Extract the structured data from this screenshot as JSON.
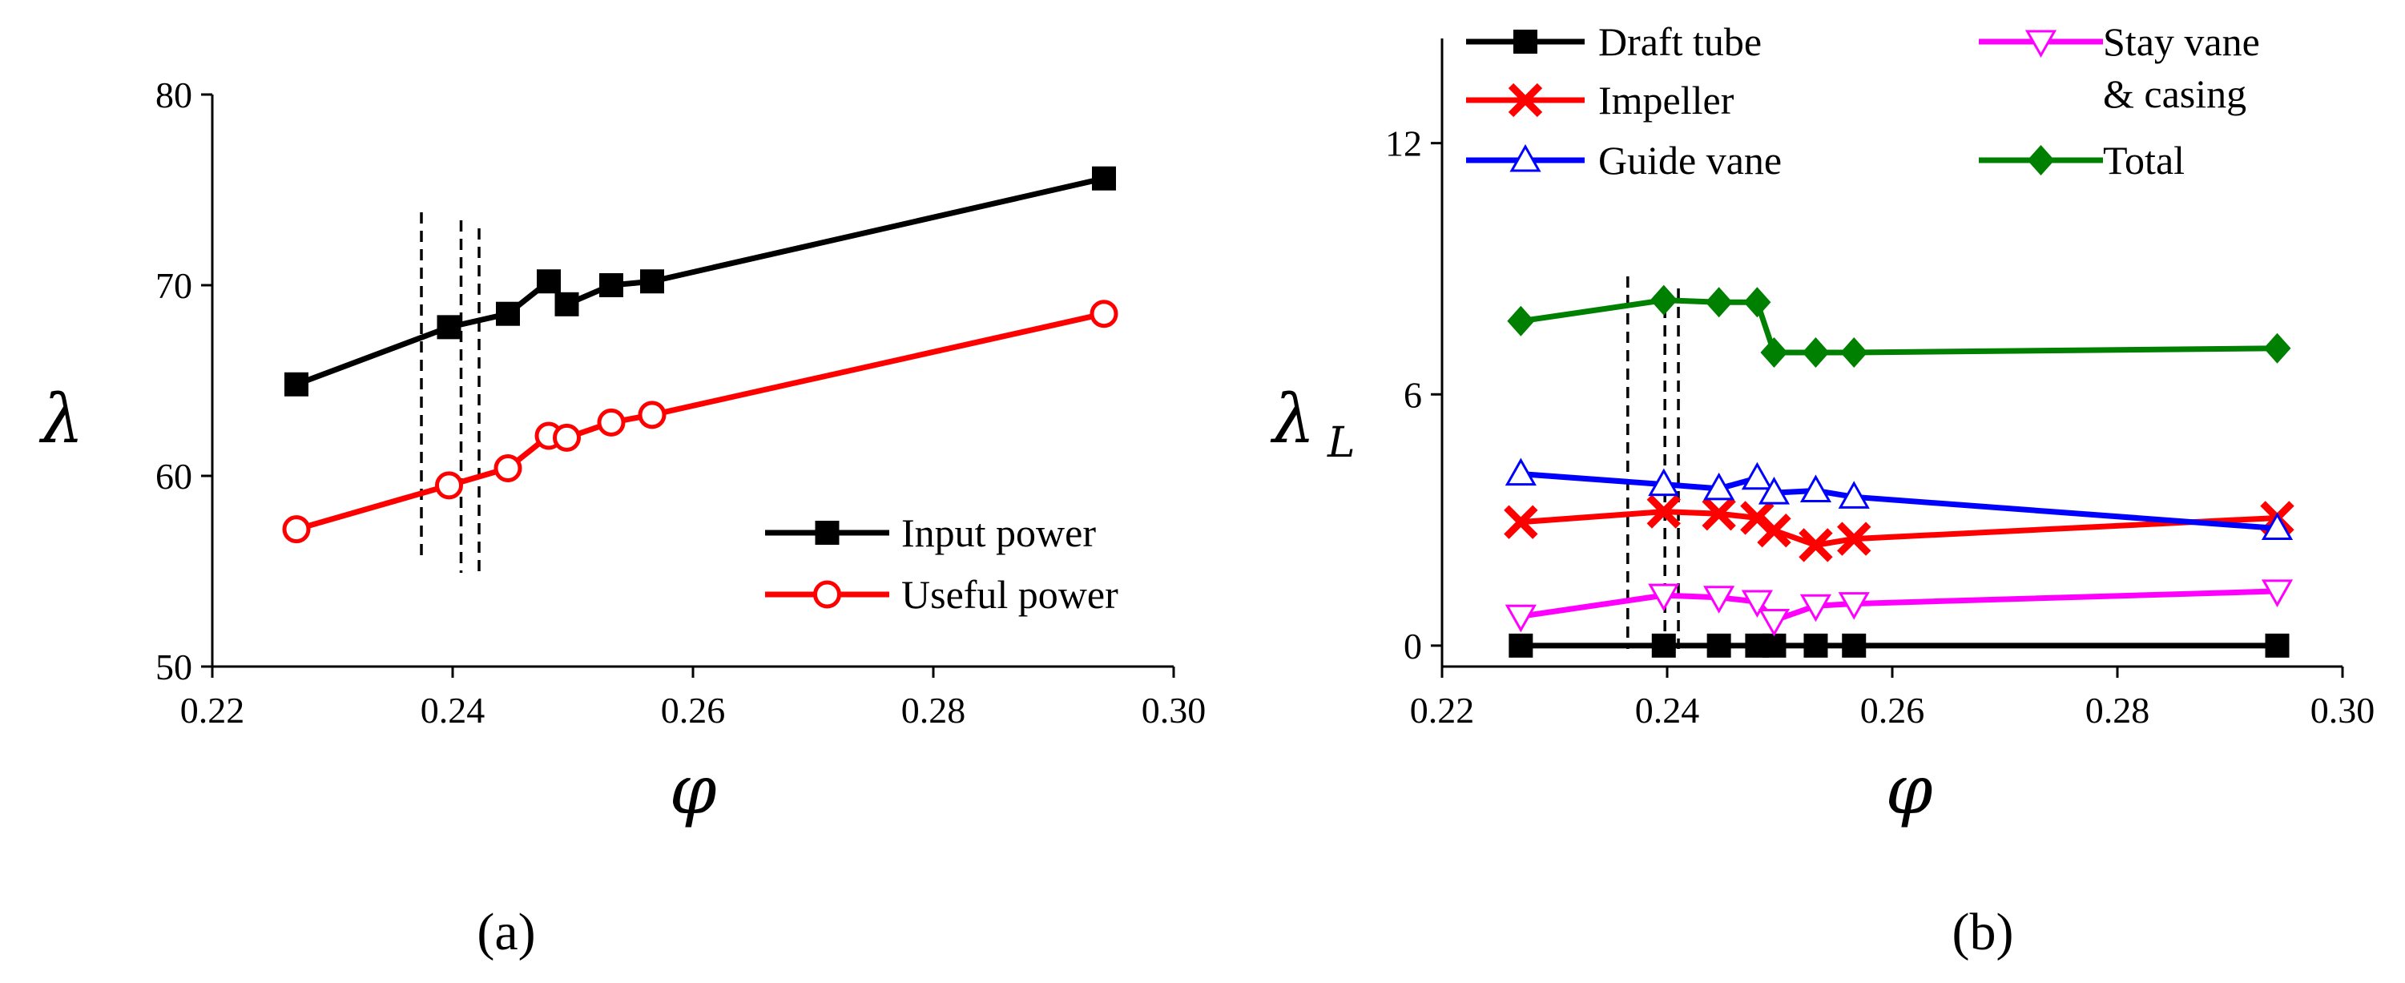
{
  "chart_data": [
    {
      "type": "line",
      "panel_label": "(a)",
      "title": "",
      "xlabel": "φ",
      "ylabel": "λ",
      "xlim": [
        0.22,
        0.3
      ],
      "ylim": [
        50,
        80
      ],
      "xticks": [
        0.22,
        0.24,
        0.26,
        0.28,
        0.3
      ],
      "xtick_labels": [
        "0.22",
        "0.24",
        "0.26",
        "0.28",
        "0.30"
      ],
      "yticks": [
        50,
        60,
        70,
        80
      ],
      "ytick_labels": [
        "50",
        "60",
        "70",
        "80"
      ],
      "legend_position": "bottom-right",
      "x": [
        0.227,
        0.2397,
        0.2446,
        0.248,
        0.2495,
        0.2532,
        0.2566,
        0.2942
      ],
      "series": [
        {
          "name": "Input power",
          "color": "#000000",
          "marker": "square-filled",
          "values": [
            64.8,
            67.8,
            68.5,
            70.2,
            69.0,
            70.0,
            70.2,
            75.6
          ]
        },
        {
          "name": "Useful power",
          "color": "#ff0000",
          "marker": "circle-open",
          "values": [
            57.2,
            59.5,
            60.4,
            62.1,
            62.0,
            62.8,
            63.2,
            68.5
          ]
        }
      ],
      "reference_lines_x": [
        0.2374,
        0.2407,
        0.2422
      ]
    },
    {
      "type": "line",
      "panel_label": "(b)",
      "title": "",
      "xlabel": "φ",
      "ylabel": "λ",
      "ylabel_subscript": "L",
      "xlim": [
        0.22,
        0.3
      ],
      "ylim": [
        -0.5,
        14.5
      ],
      "xticks": [
        0.22,
        0.24,
        0.26,
        0.28,
        0.3
      ],
      "xtick_labels": [
        "0.22",
        "0.24",
        "0.26",
        "0.28",
        "0.30"
      ],
      "yticks": [
        0,
        6,
        12
      ],
      "ytick_labels": [
        "0",
        "6",
        "12"
      ],
      "legend_position": "top",
      "x": [
        0.227,
        0.2397,
        0.2446,
        0.248,
        0.2495,
        0.2532,
        0.2566,
        0.2942
      ],
      "series": [
        {
          "name": "Draft tube",
          "color": "#000000",
          "marker": "square-filled",
          "values": [
            0.0,
            0.0,
            0.0,
            0.0,
            0.0,
            0.0,
            0.0,
            0.0
          ]
        },
        {
          "name": "Impeller",
          "color": "#ff0000",
          "marker": "x",
          "values": [
            2.95,
            3.2,
            3.15,
            3.05,
            2.75,
            2.4,
            2.55,
            3.05
          ]
        },
        {
          "name": "Guide vane",
          "color": "#0000ff",
          "marker": "triangle-up-open",
          "values": [
            4.1,
            3.85,
            3.75,
            4.0,
            3.65,
            3.7,
            3.55,
            2.8
          ]
        },
        {
          "name": "Stay vane\n& casing",
          "color": "#ff00ff",
          "marker": "triangle-down-open",
          "values": [
            0.7,
            1.2,
            1.15,
            1.05,
            0.6,
            0.95,
            1.0,
            1.3
          ]
        },
        {
          "name": "Total",
          "color": "#008000",
          "marker": "diamond-filled",
          "values": [
            7.75,
            8.25,
            8.2,
            8.2,
            7.0,
            7.0,
            7.0,
            7.1
          ]
        }
      ],
      "reference_lines_x": [
        0.2365,
        0.2398,
        0.241
      ]
    }
  ]
}
